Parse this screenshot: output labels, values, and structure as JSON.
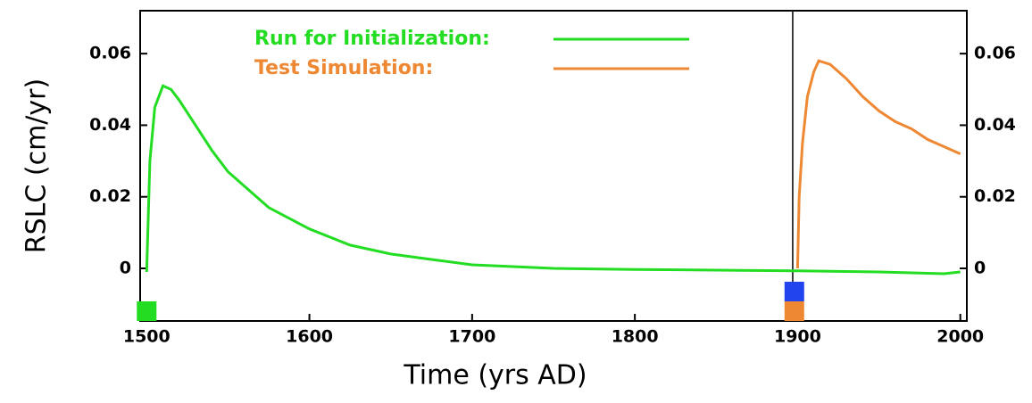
{
  "chart_data": {
    "type": "line",
    "xlabel": "Time (yrs AD)",
    "ylabel": "RSLC (cm/yr)",
    "xlim": [
      1496,
      2004
    ],
    "xticks": [
      1500,
      1600,
      1700,
      1800,
      1900,
      2000
    ],
    "ylim": [
      -0.0147,
      0.072
    ],
    "yticks": [
      0,
      0.02,
      0.04,
      0.06
    ],
    "y2lim": [
      -0.0147,
      0.072
    ],
    "y2ticks": [
      0,
      0.02,
      0.04,
      0.06
    ],
    "vline": 1897,
    "markers": [
      {
        "x": 1500,
        "color": "#22dd22"
      },
      {
        "x": 1898,
        "color": "#2244ee"
      },
      {
        "x": 1898,
        "color": "#ee8833"
      }
    ],
    "series": [
      {
        "name": "Run for Initialization:",
        "color": "#22dd22",
        "x": [
          1500,
          1502,
          1505,
          1510,
          1515,
          1520,
          1530,
          1540,
          1550,
          1575,
          1600,
          1625,
          1650,
          1675,
          1700,
          1750,
          1800,
          1850,
          1900,
          1950,
          1990,
          2000
        ],
        "values": [
          -0.001,
          0.03,
          0.045,
          0.051,
          0.05,
          0.047,
          0.04,
          0.033,
          0.027,
          0.017,
          0.011,
          0.0065,
          0.004,
          0.0025,
          0.001,
          0.0,
          -0.0003,
          -0.0005,
          -0.0007,
          -0.001,
          -0.0015,
          -0.001
        ]
      },
      {
        "name": "Test Simulation:",
        "color": "#ee8833",
        "x": [
          1900,
          1901,
          1903,
          1906,
          1910,
          1913,
          1920,
          1930,
          1940,
          1950,
          1960,
          1970,
          1980,
          1990,
          2000
        ],
        "values": [
          0.0,
          0.02,
          0.035,
          0.048,
          0.055,
          0.058,
          0.057,
          0.053,
          0.048,
          0.044,
          0.041,
          0.039,
          0.036,
          0.034,
          0.032
        ]
      }
    ]
  }
}
